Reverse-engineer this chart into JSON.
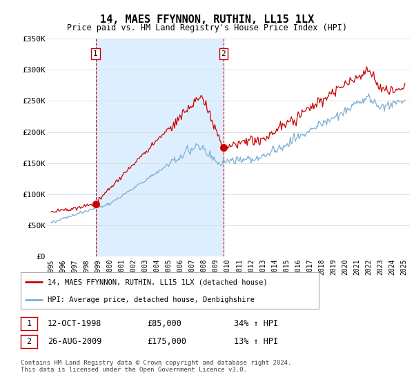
{
  "title": "14, MAES FFYNNON, RUTHIN, LL15 1LX",
  "subtitle": "Price paid vs. HM Land Registry's House Price Index (HPI)",
  "ylabel_ticks": [
    "£0",
    "£50K",
    "£100K",
    "£150K",
    "£200K",
    "£250K",
    "£300K",
    "£350K"
  ],
  "ylim": [
    0,
    350000
  ],
  "xlim_start": 1994.7,
  "xlim_end": 2025.5,
  "x_tick_years": [
    1995,
    1996,
    1997,
    1998,
    1999,
    2000,
    2001,
    2002,
    2003,
    2004,
    2005,
    2006,
    2007,
    2008,
    2009,
    2010,
    2011,
    2012,
    2013,
    2014,
    2015,
    2016,
    2017,
    2018,
    2019,
    2020,
    2021,
    2022,
    2023,
    2024,
    2025
  ],
  "sale1_x": 1998.78,
  "sale1_y": 85000,
  "sale1_label": "1",
  "sale1_date": "12-OCT-1998",
  "sale1_price": "£85,000",
  "sale1_hpi": "34% ↑ HPI",
  "sale2_x": 2009.65,
  "sale2_y": 175000,
  "sale2_label": "2",
  "sale2_date": "26-AUG-2009",
  "sale2_price": "£175,000",
  "sale2_hpi": "13% ↑ HPI",
  "line_color_red": "#cc0000",
  "line_color_blue": "#7bafd4",
  "vline_color": "#cc0000",
  "shade_color": "#ddeeff",
  "grid_color": "#dddddd",
  "background_color": "#ffffff",
  "legend_label_red": "14, MAES FFYNNON, RUTHIN, LL15 1LX (detached house)",
  "legend_label_blue": "HPI: Average price, detached house, Denbighshire",
  "footer": "Contains HM Land Registry data © Crown copyright and database right 2024.\nThis data is licensed under the Open Government Licence v3.0."
}
